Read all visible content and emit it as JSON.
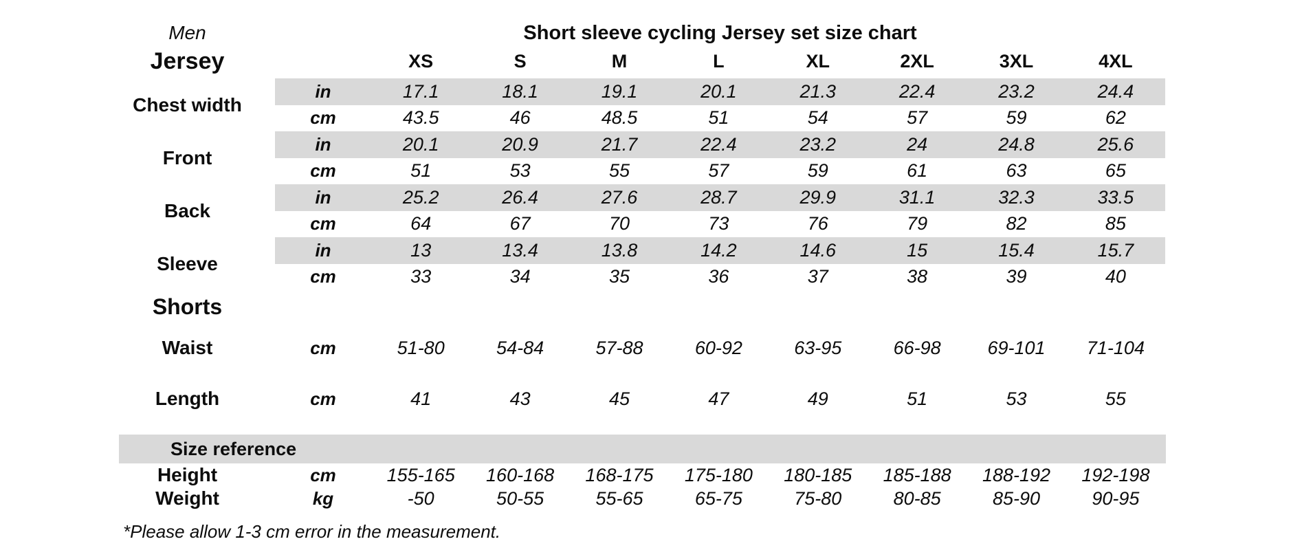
{
  "page": {
    "gender_label": "Men",
    "title": "Short sleeve cycling Jersey set size chart",
    "footnote": "*Please allow 1-3 cm error in the measurement.",
    "colors": {
      "band_gray": "#d9d9d9",
      "text": "#0d0d0d",
      "background": "#ffffff"
    }
  },
  "table": {
    "jersey_heading": "Jersey",
    "size_headers": [
      "XS",
      "S",
      "M",
      "L",
      "XL",
      "2XL",
      "3XL",
      "4XL"
    ],
    "unit_in": "in",
    "unit_cm": "cm",
    "unit_kg": "kg",
    "jersey_groups": [
      {
        "label": "Chest width",
        "in": [
          "17.1",
          "18.1",
          "19.1",
          "20.1",
          "21.3",
          "22.4",
          "23.2",
          "24.4"
        ],
        "cm": [
          "43.5",
          "46",
          "48.5",
          "51",
          "54",
          "57",
          "59",
          "62"
        ]
      },
      {
        "label": "Front",
        "in": [
          "20.1",
          "20.9",
          "21.7",
          "22.4",
          "23.2",
          "24",
          "24.8",
          "25.6"
        ],
        "cm": [
          "51",
          "53",
          "55",
          "57",
          "59",
          "61",
          "63",
          "65"
        ]
      },
      {
        "label": "Back",
        "in": [
          "25.2",
          "26.4",
          "27.6",
          "28.7",
          "29.9",
          "31.1",
          "32.3",
          "33.5"
        ],
        "cm": [
          "64",
          "67",
          "70",
          "73",
          "76",
          "79",
          "82",
          "85"
        ]
      },
      {
        "label": "Sleeve",
        "in": [
          "13",
          "13.4",
          "13.8",
          "14.2",
          "14.6",
          "15",
          "15.4",
          "15.7"
        ],
        "cm": [
          "33",
          "34",
          "35",
          "36",
          "37",
          "38",
          "39",
          "40"
        ]
      }
    ],
    "shorts_heading": "Shorts",
    "shorts_rows": [
      {
        "label": "Waist",
        "unit": "cm",
        "values": [
          "51-80",
          "54-84",
          "57-88",
          "60-92",
          "63-95",
          "66-98",
          "69-101",
          "71-104"
        ]
      },
      {
        "label": "Length",
        "unit": "cm",
        "values": [
          "41",
          "43",
          "45",
          "47",
          "49",
          "51",
          "53",
          "55"
        ]
      }
    ],
    "size_reference_heading": "Size reference",
    "reference_rows": [
      {
        "label": "Height",
        "unit": "cm",
        "values": [
          "155-165",
          "160-168",
          "168-175",
          "175-180",
          "180-185",
          "185-188",
          "188-192",
          "192-198"
        ]
      },
      {
        "label": "Weight",
        "unit": "kg",
        "values": [
          "-50",
          "50-55",
          "55-65",
          "65-75",
          "75-80",
          "80-85",
          "85-90",
          "90-95"
        ]
      }
    ]
  }
}
